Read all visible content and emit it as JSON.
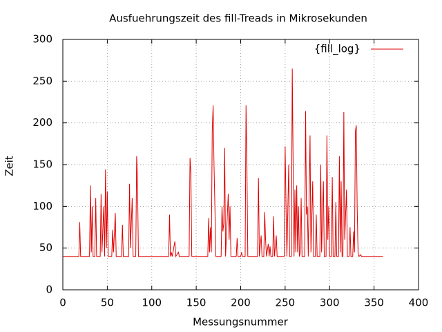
{
  "chart_data": {
    "type": "line",
    "title": "Ausfuehrungszeit des fill-Treads in Mikrosekunden",
    "xlabel": "Messungsnummer",
    "ylabel": "Zeit",
    "xlim": [
      0,
      400
    ],
    "ylim": [
      0,
      300
    ],
    "xticks": [
      0,
      50,
      100,
      150,
      200,
      250,
      300,
      350,
      400
    ],
    "yticks": [
      0,
      50,
      100,
      150,
      200,
      250,
      300
    ],
    "grid": true,
    "legend": "top-right",
    "x": [
      0,
      18,
      19,
      20,
      30,
      31,
      32,
      33,
      34,
      36,
      37,
      38,
      42,
      43,
      44,
      46,
      47,
      48,
      49,
      50,
      51,
      55,
      56,
      57,
      59,
      60,
      66,
      67,
      68,
      74,
      75,
      76,
      78,
      79,
      82,
      83,
      84,
      85,
      119,
      120,
      121,
      122,
      123,
      126,
      127,
      130,
      131,
      142,
      143,
      144,
      145,
      163,
      164,
      165,
      166,
      167,
      168,
      169,
      170,
      171,
      172,
      178,
      179,
      180,
      181,
      182,
      183,
      186,
      187,
      188,
      189,
      195,
      196,
      197,
      200,
      201,
      202,
      205,
      206,
      207,
      208,
      219,
      220,
      221,
      223,
      224,
      226,
      227,
      228,
      229,
      231,
      232,
      233,
      234,
      236,
      237,
      238,
      240,
      241,
      249,
      250,
      251,
      252,
      254,
      255,
      257,
      258,
      259,
      260,
      261,
      262,
      263,
      264,
      265,
      266,
      267,
      268,
      269,
      272,
      273,
      274,
      275,
      276,
      278,
      279,
      281,
      282,
      284,
      285,
      286,
      289,
      290,
      291,
      293,
      294,
      296,
      297,
      298,
      299,
      300,
      302,
      303,
      304,
      306,
      307,
      308,
      310,
      311,
      312,
      313,
      314,
      315,
      316,
      317,
      319,
      320,
      322,
      323,
      324,
      326,
      327,
      328,
      329,
      330,
      331,
      332,
      333,
      335,
      336,
      360
    ],
    "series": [
      {
        "name": "{fill_log}",
        "color": "#e00000",
        "values": [
          40,
          40,
          81,
          40,
          40,
          125,
          45,
          100,
          40,
          40,
          110,
          40,
          40,
          115,
          45,
          100,
          40,
          144,
          50,
          118,
          40,
          40,
          72,
          45,
          92,
          40,
          40,
          78,
          40,
          40,
          127,
          50,
          110,
          40,
          40,
          160,
          130,
          40,
          40,
          90,
          40,
          45,
          40,
          58,
          40,
          45,
          40,
          40,
          158,
          140,
          40,
          40,
          86,
          45,
          75,
          45,
          190,
          221,
          150,
          100,
          40,
          40,
          100,
          70,
          80,
          170,
          40,
          115,
          60,
          100,
          40,
          40,
          62,
          40,
          40,
          45,
          40,
          40,
          221,
          150,
          40,
          40,
          134,
          40,
          65,
          40,
          40,
          93,
          60,
          40,
          55,
          40,
          52,
          40,
          40,
          88,
          40,
          65,
          40,
          40,
          172,
          100,
          40,
          150,
          40,
          40,
          265,
          150,
          40,
          120,
          45,
          125,
          45,
          100,
          40,
          45,
          110,
          40,
          40,
          214,
          90,
          100,
          40,
          185,
          45,
          130,
          40,
          40,
          90,
          40,
          40,
          150,
          45,
          130,
          40,
          40,
          185,
          60,
          100,
          40,
          40,
          135,
          40,
          40,
          105,
          40,
          40,
          160,
          45,
          130,
          40,
          40,
          213,
          60,
          120,
          40,
          40,
          75,
          40,
          40,
          70,
          45,
          190,
          197,
          100,
          45,
          40,
          42,
          40,
          40
        ]
      }
    ]
  }
}
